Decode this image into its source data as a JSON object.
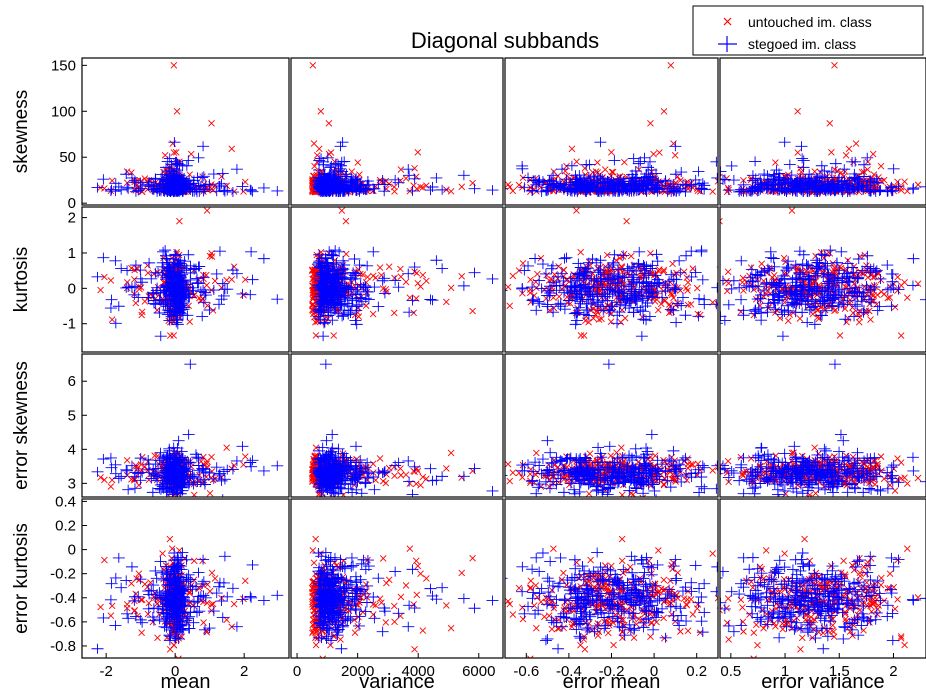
{
  "chart_data": {
    "type": "scatter",
    "title": "Diagonal subbands",
    "legend": {
      "placement": "top-right",
      "entries": [
        {
          "name": "untouched im. class",
          "marker": "x",
          "color": "#ff0000"
        },
        {
          "name": "stegoed im. class",
          "marker": "+",
          "color": "#0000ff"
        }
      ]
    },
    "grid": false,
    "columns": [
      {
        "label": "mean",
        "xlim": [
          -2.7,
          3.3
        ],
        "xticks": [
          -2,
          0,
          2
        ]
      },
      {
        "label": "variance",
        "xlim": [
          -200,
          6800
        ],
        "xticks": [
          0,
          2000,
          4000,
          6000
        ]
      },
      {
        "label": "error mean",
        "xlim": [
          -0.7,
          0.3
        ],
        "xticks": [
          -0.6,
          -0.4,
          -0.2,
          0,
          0.2
        ]
      },
      {
        "label": "error variance",
        "xlim": [
          0.4,
          2.3
        ],
        "xticks": [
          0.5,
          1,
          1.5,
          2
        ]
      }
    ],
    "rows": [
      {
        "label": "skewness",
        "ylim": [
          -2,
          158
        ],
        "yticks": [
          0,
          50,
          100,
          150
        ]
      },
      {
        "label": "kurtosis",
        "ylim": [
          -1.8,
          2.3
        ],
        "yticks": [
          -1,
          0,
          1,
          2
        ]
      },
      {
        "label": "error skewness",
        "ylim": [
          2.6,
          6.8
        ],
        "yticks": [
          3,
          4,
          5,
          6
        ]
      },
      {
        "label": "error kurtosis",
        "ylim": [
          -0.9,
          0.42
        ],
        "yticks": [
          -0.8,
          -0.6,
          -0.4,
          -0.2,
          0,
          0.2,
          0.4
        ]
      }
    ],
    "variables": [
      {
        "key": "mean",
        "untouched_center": 0,
        "untouched_spread": 0.35,
        "stegoed_center": 0,
        "stegoed_spread": 0.45
      },
      {
        "key": "variance",
        "untouched_center": 500,
        "untouched_spread": 900,
        "stegoed_center": 700,
        "stegoed_spread": 1000
      },
      {
        "key": "error_mean",
        "untouched_center": -0.2,
        "untouched_spread": 0.2,
        "stegoed_center": -0.2,
        "stegoed_spread": 0.2
      },
      {
        "key": "error_variance",
        "untouched_center": 1.3,
        "untouched_spread": 0.4,
        "stegoed_center": 1.3,
        "stegoed_spread": 0.4
      },
      {
        "key": "skewness",
        "untouched_center": 12,
        "untouched_spread": 10,
        "stegoed_center": 12,
        "stegoed_spread": 10
      },
      {
        "key": "kurtosis",
        "untouched_center": 0,
        "untouched_spread": 0.4,
        "stegoed_center": 0,
        "stegoed_spread": 0.45
      },
      {
        "key": "error_skewness",
        "untouched_center": 3.3,
        "untouched_spread": 0.25,
        "stegoed_center": 3.3,
        "stegoed_spread": 0.3
      },
      {
        "key": "error_kurtosis",
        "untouched_center": -0.4,
        "untouched_spread": 0.15,
        "stegoed_center": -0.4,
        "stegoed_spread": 0.15
      }
    ],
    "points_per_class": 300,
    "notable_outliers": {
      "skewness": [
        150,
        100
      ],
      "kurtosis": [
        2.2,
        1.9
      ],
      "error_skewness": [
        6.5
      ]
    }
  }
}
